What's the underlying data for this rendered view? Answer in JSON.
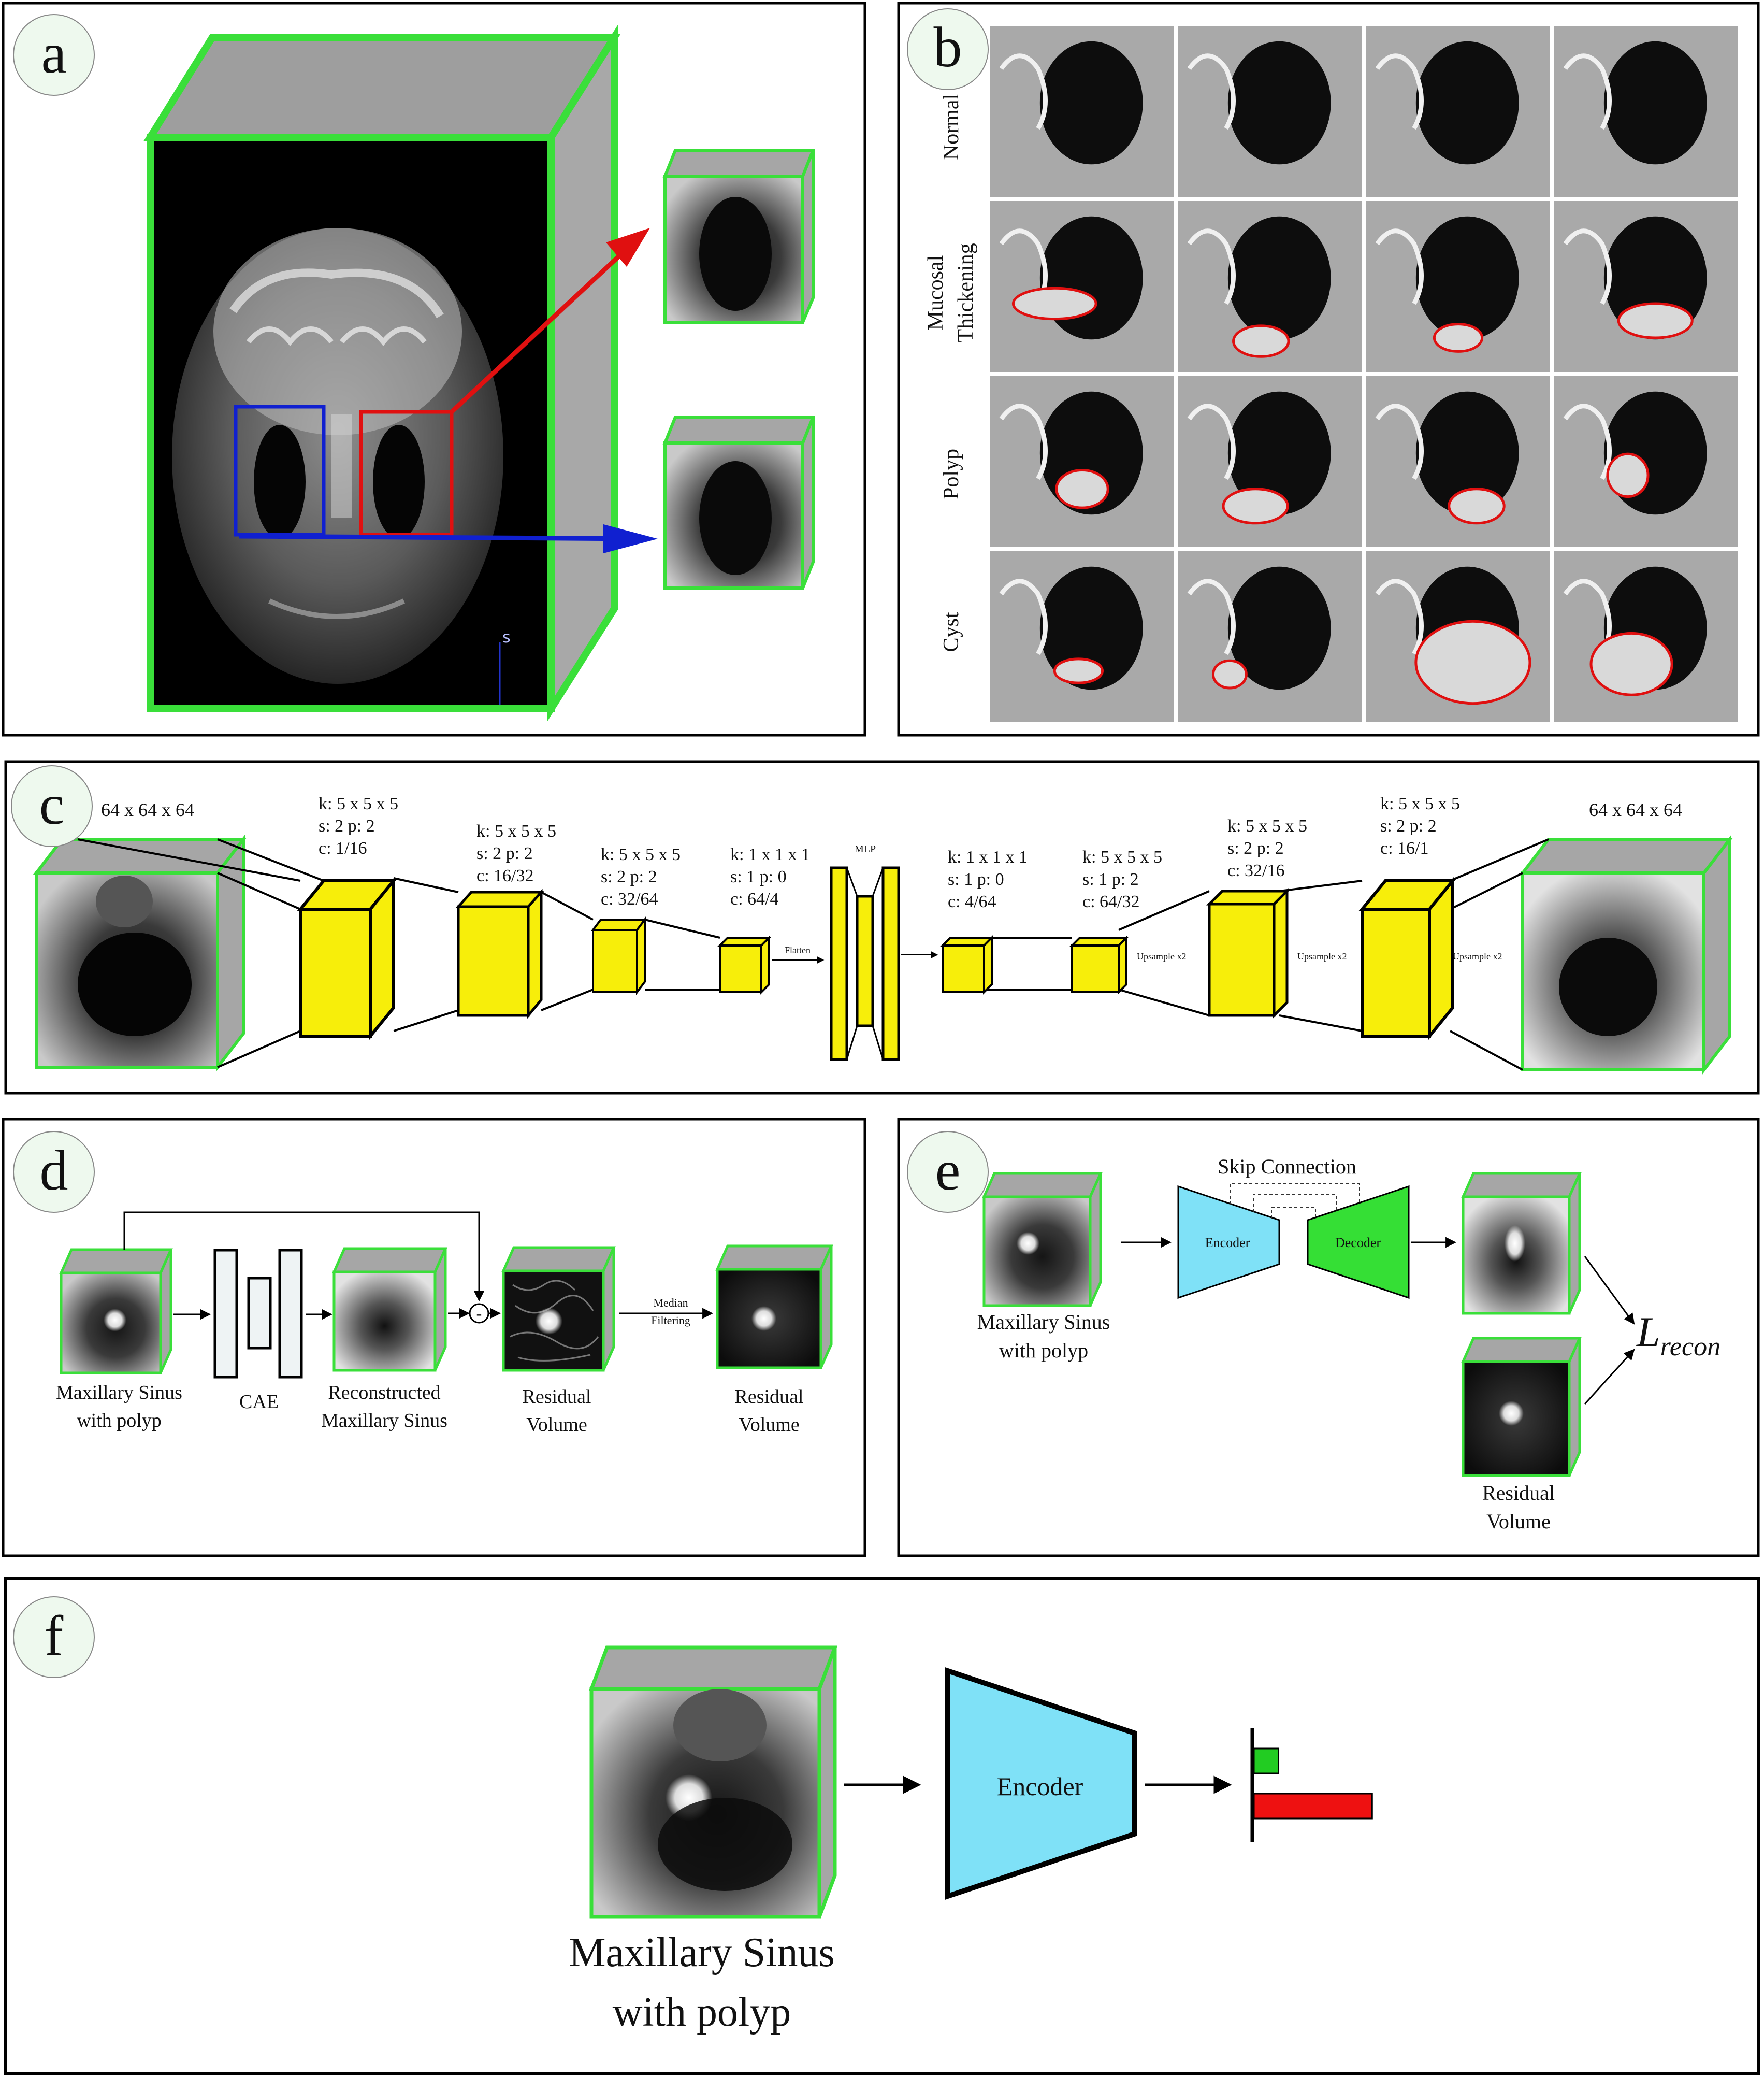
{
  "colors": {
    "cube_edge": "#3adf3a",
    "cube_side": "#a6a6a6",
    "layer_fill": "#f7ee0a",
    "encoder_fill": "#7fe1f7",
    "decoder_fill": "#35df35",
    "bar_green": "#22cc22",
    "bar_red": "#ee1111",
    "roi_red": "#e01010",
    "roi_blue": "#1020d0",
    "badge_fill": "#eef9ee"
  },
  "panels": {
    "a": {
      "letter": "a",
      "axis_letter": "s"
    },
    "b": {
      "letter": "b",
      "rows": [
        "Normal",
        "Mucosal",
        "Thickening",
        "Polyp",
        "Cyst"
      ]
    },
    "c": {
      "letter": "c",
      "input_size": "64 x 64 x 64",
      "output_size": "64 x 64 x 64",
      "mlp_label": "MLP",
      "flatten_label": "Flatten",
      "upsample_label": "Upsample x2",
      "layers": [
        {
          "k": "k:  5 x 5 x 5",
          "s": "s:  2 p: 2",
          "c": "c:  1/16"
        },
        {
          "k": "k:  5 x 5 x 5",
          "s": "s:  2 p: 2",
          "c": "c:  16/32"
        },
        {
          "k": "k:  5 x 5 x 5",
          "s": "s:  2 p: 2",
          "c": "c:  32/64"
        },
        {
          "k": "k:  1 x 1 x 1",
          "s": "s:  1 p: 0",
          "c": "c:  64/4"
        },
        {
          "k": "k:  1 x 1 x 1",
          "s": "s:  1 p: 0",
          "c": "c:  4/64"
        },
        {
          "k": "k:  5 x 5 x 5",
          "s": "s:  1 p: 2",
          "c": "c:  64/32"
        },
        {
          "k": "k:  5 x 5 x 5",
          "s": "s:  2 p: 2",
          "c": "c:  32/16"
        },
        {
          "k": "k:  5 x 5 x 5",
          "s": "s:  2 p: 2",
          "c": "c:  16/1"
        }
      ]
    },
    "d": {
      "letter": "d",
      "input_line1": "Maxillary Sinus",
      "input_line2": "with polyp",
      "cae_label": "CAE",
      "recon_line1": "Reconstructed",
      "recon_line2": "Maxillary Sinus",
      "minus_sign": "-",
      "residual_line1": "Residual",
      "residual_line2": "Volume",
      "filter_line1": "Median",
      "filter_line2": "Filtering",
      "residual2_line1": "Residual",
      "residual2_line2": "Volume"
    },
    "e": {
      "letter": "e",
      "skip_label": "Skip Connection",
      "encoder_label": "Encoder",
      "decoder_label": "Decoder",
      "input_line1": "Maxillary Sinus",
      "input_line2": "with polyp",
      "residual_line1": "Residual",
      "residual_line2": "Volume",
      "loss_symbol": "L",
      "loss_subscript": "recon"
    },
    "f": {
      "letter": "f",
      "encoder_label": "Encoder",
      "input_line1": "Maxillary Sinus",
      "input_line2": "with polyp",
      "bars": [
        {
          "name": "green",
          "value": 0.18,
          "color": "#22cc22"
        },
        {
          "name": "red",
          "value": 0.82,
          "color": "#ee1111"
        }
      ]
    }
  }
}
